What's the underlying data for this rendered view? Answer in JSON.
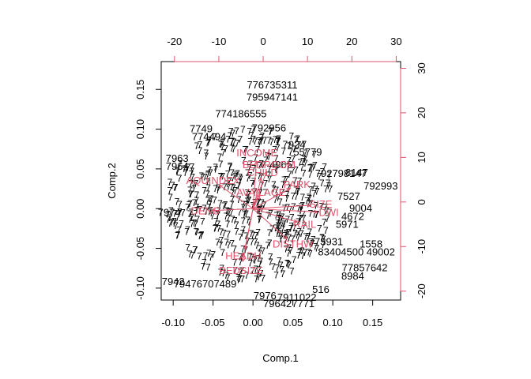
{
  "chart_data": {
    "type": "scatter",
    "subtype": "biplot",
    "title": "",
    "xlabel": "Comp.1",
    "ylabel": "Comp.2",
    "xlim": [
      -0.115,
      0.185
    ],
    "ylim": [
      -0.115,
      0.185
    ],
    "top_axis_lim": [
      -23,
      31
    ],
    "right_axis_lim": [
      -22,
      31.5
    ],
    "x_ticks": [
      "-0.10",
      "-0.05",
      "0.00",
      "0.05",
      "0.10",
      "0.15"
    ],
    "x_tick_values": [
      -0.1,
      -0.05,
      0.0,
      0.05,
      0.1,
      0.15
    ],
    "y_ticks": [
      "-0.10",
      "-0.05",
      "0.00",
      "0.05",
      "0.10",
      "0.15"
    ],
    "y_tick_values": [
      -0.1,
      -0.05,
      0.0,
      0.05,
      0.1,
      0.15
    ],
    "top_ticks": [
      "-20",
      "-10",
      "0",
      "10",
      "20",
      "30"
    ],
    "top_tick_values": [
      -20,
      -10,
      0,
      10,
      20,
      30
    ],
    "right_ticks": [
      "-20",
      "-10",
      "0",
      "10",
      "20",
      "30"
    ],
    "right_tick_values": [
      -20,
      -10,
      0,
      10,
      20,
      30
    ],
    "colors": {
      "points": "#000000",
      "vectors": "#df536b"
    },
    "observations": [
      {
        "label": "776735311",
        "x": 0.024,
        "y": 0.155
      },
      {
        "label": "795947141",
        "x": 0.024,
        "y": 0.14
      },
      {
        "label": "774186555",
        "x": -0.015,
        "y": 0.119
      },
      {
        "label": "792956",
        "x": 0.02,
        "y": 0.101
      },
      {
        "label": "924",
        "x": 0.055,
        "y": 0.08
      },
      {
        "label": "755779",
        "x": 0.065,
        "y": 0.071
      },
      {
        "label": "8147",
        "x": 0.13,
        "y": 0.045
      },
      {
        "label": "792798147",
        "x": 0.11,
        "y": 0.044
      },
      {
        "label": "792993",
        "x": 0.16,
        "y": 0.028
      },
      {
        "label": "7963",
        "x": -0.095,
        "y": 0.063
      },
      {
        "label": "7964",
        "x": -0.095,
        "y": 0.053
      },
      {
        "label": "7974",
        "x": -0.105,
        "y": -0.005
      },
      {
        "label": "4965",
        "x": 0.035,
        "y": 0.055
      },
      {
        "label": "7527",
        "x": 0.12,
        "y": 0.015
      },
      {
        "label": "9004",
        "x": 0.135,
        "y": 0.0
      },
      {
        "label": "4672",
        "x": 0.125,
        "y": -0.01
      },
      {
        "label": "5971",
        "x": 0.118,
        "y": -0.02
      },
      {
        "label": "73931",
        "x": 0.095,
        "y": -0.042
      },
      {
        "label": "1558",
        "x": 0.148,
        "y": -0.045
      },
      {
        "label": "83404500",
        "x": 0.11,
        "y": -0.055
      },
      {
        "label": "49002",
        "x": 0.16,
        "y": -0.055
      },
      {
        "label": "77857642",
        "x": 0.14,
        "y": -0.075
      },
      {
        "label": "8984",
        "x": 0.125,
        "y": -0.085
      },
      {
        "label": "516",
        "x": 0.085,
        "y": -0.102
      },
      {
        "label": "7911022",
        "x": 0.055,
        "y": -0.112
      },
      {
        "label": "796427771",
        "x": 0.045,
        "y": -0.12
      },
      {
        "label": "7976",
        "x": 0.015,
        "y": -0.11
      },
      {
        "label": "7942",
        "x": -0.1,
        "y": -0.092
      },
      {
        "label": "79476707489",
        "x": -0.06,
        "y": -0.095
      },
      {
        "label": "774494",
        "x": -0.055,
        "y": 0.09
      },
      {
        "label": "7749",
        "x": -0.065,
        "y": 0.1
      }
    ],
    "variables": [
      {
        "label": "INCOME",
        "x": 0.005,
        "y": 0.07
      },
      {
        "label": "CHILD",
        "x": 0.012,
        "y": 0.045
      },
      {
        "label": "BEDROOM",
        "x": 0.02,
        "y": 0.055
      },
      {
        "label": "PARK",
        "x": 0.055,
        "y": 0.03
      },
      {
        "label": "AVAILAGE",
        "x": 0.01,
        "y": 0.02
      },
      {
        "label": "AQUINDEX",
        "x": -0.05,
        "y": 0.035
      },
      {
        "label": "DENS",
        "x": -0.06,
        "y": -0.003
      },
      {
        "label": "SIZE",
        "x": 0.085,
        "y": 0.005
      },
      {
        "label": "DWI",
        "x": 0.095,
        "y": -0.005
      },
      {
        "label": "RAIL",
        "x": 0.065,
        "y": -0.02
      },
      {
        "label": "DISTHW",
        "x": 0.05,
        "y": -0.045
      },
      {
        "label": "HEADH",
        "x": -0.012,
        "y": -0.06
      },
      {
        "label": "BEDSIZE",
        "x": -0.015,
        "y": -0.078
      }
    ]
  }
}
